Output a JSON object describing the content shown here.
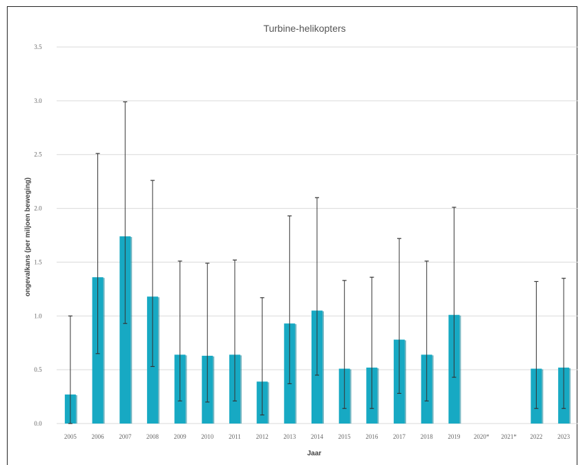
{
  "chart_data": {
    "type": "bar",
    "title": "Turbine-helikopters",
    "xlabel": "Jaar",
    "ylabel": "ongevalkans (per miljoen beweging)",
    "ylim": [
      0,
      3.5
    ],
    "yticks": [
      "0.0",
      "0.5",
      "1.0",
      "1.5",
      "2.0",
      "2.5",
      "3.0",
      "3.5"
    ],
    "grid": true,
    "categories": [
      "2005",
      "2006",
      "2007",
      "2008",
      "2009",
      "2010",
      "2011",
      "2012",
      "2013",
      "2014",
      "2015",
      "2016",
      "2017",
      "2018",
      "2019",
      "2020*",
      "2021*",
      "2022",
      "2023"
    ],
    "values": [
      0.27,
      1.36,
      1.74,
      1.18,
      0.64,
      0.63,
      0.64,
      0.39,
      0.93,
      1.05,
      0.51,
      0.52,
      0.78,
      0.64,
      1.01,
      null,
      null,
      0.51,
      0.52
    ],
    "error_low": [
      0.0,
      0.65,
      0.93,
      0.53,
      0.21,
      0.2,
      0.21,
      0.08,
      0.37,
      0.45,
      0.14,
      0.14,
      0.28,
      0.21,
      0.43,
      null,
      null,
      0.14,
      0.14
    ],
    "error_high": [
      1.0,
      2.51,
      2.99,
      2.26,
      1.51,
      1.49,
      1.52,
      1.17,
      1.93,
      2.1,
      1.33,
      1.36,
      1.72,
      1.51,
      2.01,
      null,
      null,
      1.32,
      1.35
    ],
    "colors": {
      "bar": "#17A9C3",
      "bar_shadow": "#0E7F93",
      "error": "#333333",
      "grid": "#d9d9d9"
    }
  }
}
